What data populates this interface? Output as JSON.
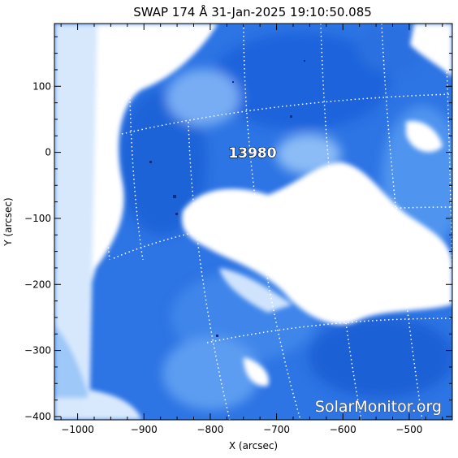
{
  "figure": {
    "title": "SWAP 174 Å 31-Jan-2025 19:10:50.085",
    "xlabel": "X (arcsec)",
    "ylabel": "Y (arcsec)",
    "region_label": "13980",
    "watermark": "SolarMonitor.org",
    "colors": {
      "image_dark": "#1560d8",
      "image_mid": "#4d95ee",
      "image_light": "#b7d8fb",
      "saturated": "#ffffff",
      "grid": "#ffffff"
    }
  },
  "axes": {
    "xlim": [
      -1035,
      -435
    ],
    "ylim": [
      -405,
      195
    ],
    "xticks": [
      -1000,
      -900,
      -800,
      -700,
      -600,
      -500
    ],
    "yticks": [
      -400,
      -300,
      -200,
      -100,
      0,
      100
    ],
    "xtick_labels": [
      "−1000",
      "−900",
      "−800",
      "−700",
      "−600",
      "−500"
    ],
    "ytick_labels": [
      "−400",
      "−300",
      "−200",
      "−100",
      "0",
      "100"
    ]
  }
}
